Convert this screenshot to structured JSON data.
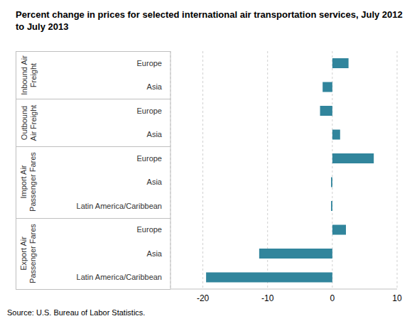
{
  "chart_data": {
    "type": "bar",
    "orientation": "horizontal",
    "title": "Percent  change in prices for selected international air transportation services, July 2012  to July 2013",
    "source": "Source: U.S. Bureau of Labor Statistics.",
    "categories": [
      "Europe",
      "Asia",
      "Europe",
      "Asia",
      "Europe",
      "Asia",
      "Latin America/Caribbean",
      "Europe",
      "Asia",
      "Latin America/Caribbean"
    ],
    "groups": [
      "Inbound Air Freight",
      "Inbound Air Freight",
      "Outbound Air Freight",
      "Outbound Air Freight",
      "Import Air Passenger Fares",
      "Import Air Passenger Fares",
      "Import Air Passenger Fares",
      "Export Air Passenger Fares",
      "Export Air Passenger Fares",
      "Export Air Passenger Fares"
    ],
    "values": [
      2.5,
      -1.5,
      -1.9,
      1.2,
      6.4,
      -0.2,
      -0.2,
      2.1,
      -11.3,
      -19.5
    ],
    "color": "#31859c",
    "xlim": [
      -25,
      10
    ],
    "xticks": [
      -20,
      -10,
      0,
      10
    ],
    "grid": true
  }
}
